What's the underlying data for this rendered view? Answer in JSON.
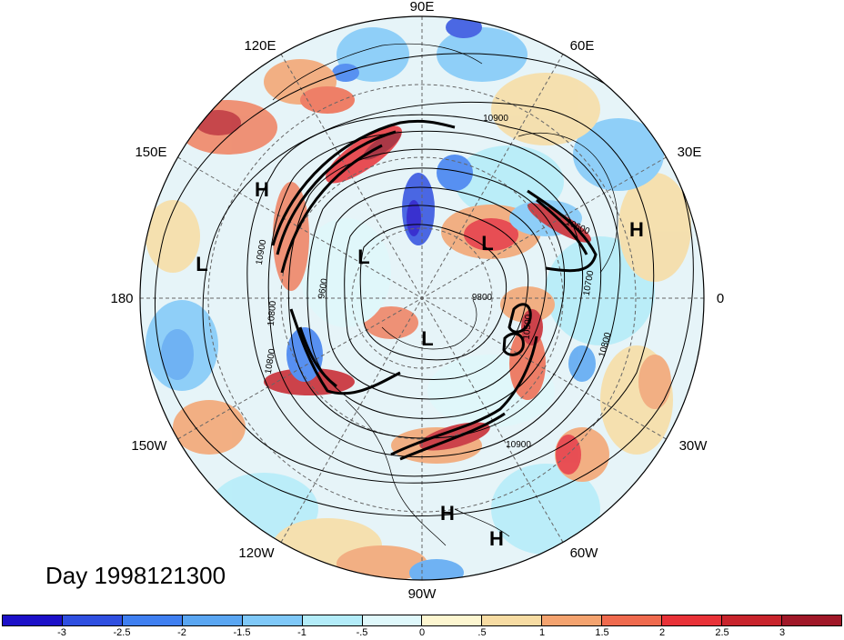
{
  "map": {
    "projection": "north-polar-stereographic",
    "longitude_labels": [
      "90E",
      "60E",
      "30E",
      "0",
      "30W",
      "60W",
      "90W",
      "120W",
      "150W",
      "180",
      "150E",
      "120E"
    ],
    "highs_lows": [
      "H",
      "H",
      "L",
      "L",
      "L",
      "L",
      "H",
      "H"
    ],
    "contour_labels": [
      "10900",
      "10900",
      "10900",
      "10800",
      "10800",
      "10800",
      "10700",
      "10600",
      "10500",
      "9800",
      "9600",
      "10900"
    ],
    "colors": {
      "warm_strong": "#c0282d",
      "warm": "#f08060",
      "warm_light": "#f8d6a0",
      "cool_light": "#c8ecf8",
      "cool": "#6eb8e8",
      "cool_strong": "#2a50c8",
      "neutral": "#e8f4f8"
    }
  },
  "footer": {
    "day_label": "Day 1998121300"
  },
  "colorbar": {
    "ticks": [
      "-3",
      "-2.5",
      "-2",
      "-1.5",
      "-1",
      "-.5",
      "0",
      ".5",
      "1",
      "1.5",
      "2",
      "2.5",
      "3"
    ],
    "colors": [
      "#1c10c8",
      "#2f4fe0",
      "#3f7ff0",
      "#5aa6f2",
      "#7fc8f8",
      "#b3ecf9",
      "#dff8fb",
      "#fdf6d0",
      "#f7dca3",
      "#f4a36f",
      "#ef6a4e",
      "#e83238",
      "#c8242c",
      "#a01828"
    ]
  }
}
